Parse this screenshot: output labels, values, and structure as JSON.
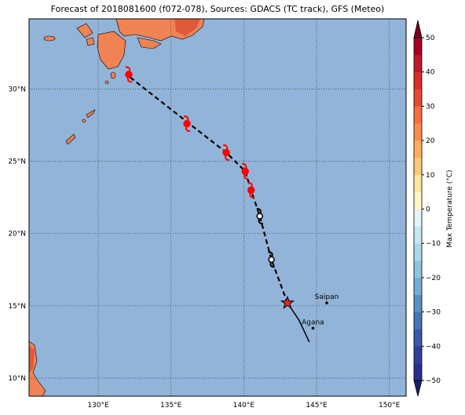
{
  "chart_data": {
    "type": "map",
    "title": "Forecast of 2018081600 (f072-078), Sources: GDACS (TC track), GFS (Meteo)",
    "ocean_color": "#92b4d8",
    "land_color": "#ef8354",
    "xlim": [
      125.25,
      151.15
    ],
    "ylim": [
      8.75,
      34.85
    ],
    "xticks": [
      {
        "value": 130,
        "label": "130°E"
      },
      {
        "value": 135,
        "label": "135°E"
      },
      {
        "value": 140,
        "label": "140°E"
      },
      {
        "value": 145,
        "label": "145°E"
      },
      {
        "value": 150,
        "label": "150°E"
      }
    ],
    "yticks": [
      {
        "value": 10,
        "label": "10°N"
      },
      {
        "value": 15,
        "label": "15°N"
      },
      {
        "value": 20,
        "label": "20°N"
      },
      {
        "value": 25,
        "label": "25°N"
      },
      {
        "value": 30,
        "label": "30°N"
      }
    ],
    "grid": true,
    "forecast_track": {
      "lon": [
        132.2,
        136.0,
        138.8,
        140.1,
        140.5,
        141.1,
        141.9,
        143.0
      ],
      "lat": [
        30.8,
        27.8,
        25.6,
        24.3,
        23.0,
        21.2,
        18.2,
        15.2
      ]
    },
    "past_track": {
      "lon": [
        143.0,
        143.8,
        144.5
      ],
      "lat": [
        15.2,
        14.0,
        12.5
      ]
    },
    "current_position": {
      "lon": 143.0,
      "lat": 15.2,
      "color": "#e8281e"
    },
    "storms": [
      {
        "lon": 132.1,
        "lat": 31.0,
        "color": "#ff0000"
      },
      {
        "lon": 136.1,
        "lat": 27.6,
        "color": "#ff0000"
      },
      {
        "lon": 138.8,
        "lat": 25.6,
        "color": "#ff0000"
      },
      {
        "lon": 140.1,
        "lat": 24.3,
        "color": "#ff0000"
      },
      {
        "lon": 140.5,
        "lat": 23.0,
        "color": "#ff0000"
      },
      {
        "lon": 141.1,
        "lat": 21.2,
        "color": "#ffffff"
      },
      {
        "lon": 141.9,
        "lat": 18.2,
        "color": "#ffffff"
      }
    ],
    "cities": [
      {
        "name": "Saipan",
        "lon": 145.7,
        "lat": 15.2
      },
      {
        "name": "Agana",
        "lon": 144.75,
        "lat": 13.45
      }
    ],
    "colorbar": {
      "label": "Max Temperature (°C)",
      "lim": [
        -50,
        50
      ],
      "ticks": [
        {
          "value": -50,
          "label": "−50"
        },
        {
          "value": -40,
          "label": "−40"
        },
        {
          "value": -30,
          "label": "−30"
        },
        {
          "value": -20,
          "label": "−20"
        },
        {
          "value": -10,
          "label": "−10"
        },
        0,
        10,
        20,
        30,
        40,
        50
      ],
      "colors": [
        "#2b2f8c",
        "#323f99",
        "#3b58a6",
        "#4575b4",
        "#5a8fc2",
        "#74add1",
        "#90c4dd",
        "#abd9e9",
        "#c8e6f0",
        "#e6f5f8",
        "#fff6c9",
        "#fee7a0",
        "#fdc97a",
        "#fdae61",
        "#f88d52",
        "#f46d43",
        "#e34a33",
        "#d73027",
        "#bb1b2b",
        "#a50026"
      ],
      "extend_colors": [
        "#1b1f6b",
        "#7a0020"
      ]
    }
  }
}
